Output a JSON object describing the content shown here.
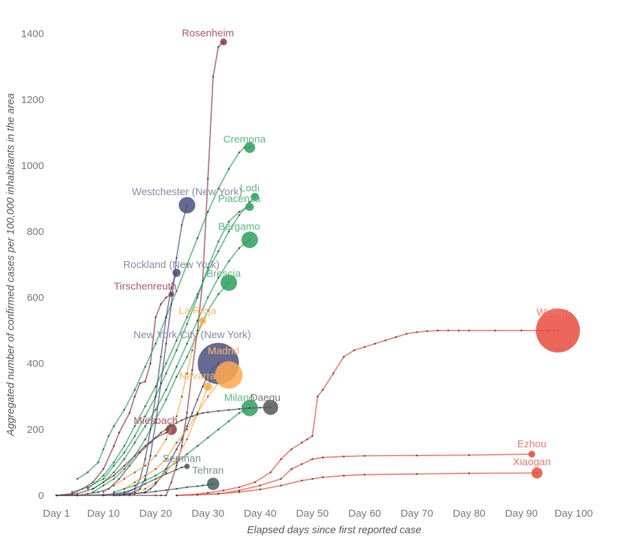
{
  "chart_data": {
    "type": "line",
    "title": "",
    "xlabel": "Elapsed days since first reported case",
    "ylabel": "Aggregated number of confirmed cases per 100,000 inhabitants in the area",
    "xlim": [
      1,
      100
    ],
    "ylim": [
      0,
      1400
    ],
    "x_ticks": [
      1,
      10,
      20,
      30,
      40,
      50,
      60,
      70,
      80,
      90,
      100
    ],
    "x_tick_labels": [
      "Day 1",
      "Day 10",
      "Day 20",
      "Day 30",
      "Day 40",
      "Day 50",
      "Day 60",
      "Day 70",
      "Day 80",
      "Day 90",
      "Day 100"
    ],
    "y_ticks": [
      0,
      200,
      400,
      600,
      800,
      1000,
      1200,
      1400
    ],
    "y_tick_labels": [
      "0",
      "200",
      "400",
      "600",
      "800",
      "1000",
      "1200",
      "1400"
    ],
    "grid": false,
    "series": [
      {
        "name": "Rosenheim",
        "color": "#8c3b4a",
        "end_size": 5,
        "x": [
          1,
          5,
          10,
          15,
          20,
          21,
          22,
          23,
          24,
          25,
          26,
          27,
          28,
          29,
          30,
          31,
          32,
          33
        ],
        "y": [
          0,
          0,
          0,
          0,
          0,
          0,
          0,
          40,
          90,
          150,
          250,
          380,
          500,
          650,
          960,
          1270,
          1360,
          1375
        ]
      },
      {
        "name": "Tirschenreuth",
        "color": "#8c3b4a",
        "end_size": 4,
        "x": [
          1,
          4,
          6,
          8,
          10,
          12,
          13,
          15,
          16,
          17,
          18,
          19,
          20,
          21,
          22,
          23
        ],
        "y": [
          0,
          5,
          20,
          40,
          80,
          150,
          190,
          250,
          300,
          340,
          345,
          400,
          540,
          580,
          600,
          610
        ]
      },
      {
        "name": "Miesbach",
        "color": "#8c3b4a",
        "end_size": 8,
        "x": [
          1,
          5,
          8,
          10,
          12,
          14,
          16,
          18,
          20,
          22,
          23
        ],
        "y": [
          0,
          5,
          20,
          40,
          60,
          90,
          120,
          150,
          175,
          190,
          200
        ]
      },
      {
        "name": "Cremona",
        "color": "#2f9e5e",
        "end_size": 8,
        "x": [
          5,
          7,
          9,
          10,
          11,
          12,
          14,
          16,
          18,
          20,
          22,
          24,
          26,
          28,
          30,
          32,
          34,
          36,
          37,
          38
        ],
        "y": [
          50,
          70,
          100,
          140,
          180,
          210,
          260,
          320,
          390,
          460,
          540,
          620,
          700,
          780,
          860,
          930,
          990,
          1040,
          1055,
          1055
        ]
      },
      {
        "name": "Lodi",
        "color": "#2f9e5e",
        "end_size": 6,
        "x": [
          7,
          10,
          12,
          14,
          16,
          18,
          20,
          22,
          24,
          26,
          28,
          30,
          32,
          34,
          36,
          38,
          39
        ],
        "y": [
          20,
          60,
          100,
          150,
          210,
          270,
          330,
          400,
          470,
          540,
          610,
          680,
          740,
          800,
          850,
          890,
          905
        ]
      },
      {
        "name": "Piacenza",
        "color": "#2f9e5e",
        "end_size": 6,
        "x": [
          4,
          7,
          10,
          12,
          14,
          16,
          18,
          20,
          22,
          24,
          26,
          28,
          30,
          32,
          34,
          36,
          38
        ],
        "y": [
          10,
          25,
          50,
          90,
          130,
          180,
          240,
          300,
          370,
          440,
          520,
          600,
          690,
          770,
          830,
          860,
          875
        ]
      },
      {
        "name": "Bergamo",
        "color": "#2f9e5e",
        "end_size": 12,
        "x": [
          8,
          10,
          12,
          14,
          16,
          18,
          20,
          22,
          24,
          26,
          28,
          30,
          32,
          34,
          36,
          38
        ],
        "y": [
          20,
          40,
          70,
          110,
          160,
          210,
          260,
          320,
          390,
          460,
          530,
          600,
          660,
          710,
          750,
          775
        ]
      },
      {
        "name": "Brescia",
        "color": "#2f9e5e",
        "end_size": 12,
        "x": [
          8,
          10,
          12,
          14,
          16,
          18,
          20,
          22,
          24,
          26,
          28,
          30,
          32,
          34
        ],
        "y": [
          10,
          30,
          50,
          80,
          120,
          170,
          230,
          290,
          360,
          420,
          490,
          560,
          610,
          645
        ]
      },
      {
        "name": "Milano",
        "color": "#2f9e5e",
        "end_size": 12,
        "x": [
          12,
          14,
          16,
          18,
          20,
          22,
          24,
          26,
          28,
          30,
          32,
          34,
          36,
          38
        ],
        "y": [
          10,
          20,
          30,
          45,
          60,
          80,
          100,
          125,
          150,
          175,
          200,
          225,
          250,
          265
        ]
      },
      {
        "name": "Westchester (New York)",
        "color": "#4b4f7c",
        "end_size": 12,
        "x": [
          13,
          15,
          17,
          18,
          19,
          20,
          21,
          22,
          23,
          24,
          25,
          26
        ],
        "y": [
          0,
          5,
          20,
          50,
          120,
          220,
          340,
          460,
          580,
          720,
          820,
          880
        ]
      },
      {
        "name": "Rockland (New York)",
        "color": "#4b4f7c",
        "end_size": 6,
        "x": [
          12,
          14,
          16,
          17,
          18,
          19,
          20,
          21,
          22,
          23,
          24
        ],
        "y": [
          0,
          5,
          20,
          50,
          110,
          200,
          300,
          420,
          540,
          630,
          675
        ]
      },
      {
        "name": "New York City (New York)",
        "color": "#4b4f7c",
        "end_size": 30,
        "x": [
          12,
          14,
          16,
          18,
          19,
          20,
          21,
          22,
          23,
          24,
          25,
          26,
          27,
          28,
          29,
          30,
          31,
          32
        ],
        "y": [
          0,
          2,
          5,
          10,
          20,
          35,
          55,
          80,
          110,
          140,
          170,
          210,
          250,
          290,
          330,
          365,
          385,
          400
        ]
      },
      {
        "name": "La Rioja",
        "color": "#ffa94d",
        "end_size": 5,
        "x": [
          10,
          12,
          14,
          16,
          18,
          20,
          22,
          24,
          25,
          26,
          27,
          28,
          29
        ],
        "y": [
          10,
          30,
          50,
          70,
          90,
          120,
          170,
          240,
          300,
          370,
          440,
          500,
          530
        ]
      },
      {
        "name": "Madrid",
        "color": "#ffa94d",
        "end_size": 20,
        "x": [
          14,
          16,
          18,
          20,
          22,
          24,
          26,
          28,
          30,
          32,
          34
        ],
        "y": [
          20,
          40,
          60,
          80,
          110,
          160,
          200,
          250,
          300,
          340,
          365
        ]
      },
      {
        "name": "Navarra",
        "color": "#ffa94d",
        "end_size": 6,
        "x": [
          16,
          18,
          20,
          22,
          24,
          26,
          28,
          30
        ],
        "y": [
          10,
          20,
          40,
          70,
          110,
          170,
          250,
          330
        ]
      },
      {
        "name": "Daegu",
        "color": "#555555",
        "end_size": 11,
        "x": [
          1,
          3,
          5,
          7,
          9,
          11,
          13,
          15,
          17,
          19,
          20,
          21,
          22,
          23,
          24,
          25,
          26,
          27,
          28,
          29,
          30,
          32,
          34,
          36,
          38,
          40,
          42
        ],
        "y": [
          0,
          0,
          0,
          5,
          10,
          20,
          50,
          90,
          130,
          160,
          175,
          190,
          200,
          210,
          220,
          228,
          235,
          240,
          245,
          250,
          252,
          256,
          259,
          262,
          265,
          266,
          267
        ]
      },
      {
        "name": "Semnan",
        "color": "#465c5c",
        "end_size": 4,
        "x": [
          10,
          12,
          14,
          16,
          18,
          20,
          22,
          24,
          25,
          26
        ],
        "y": [
          0,
          5,
          10,
          20,
          35,
          50,
          65,
          78,
          85,
          88
        ]
      },
      {
        "name": "Tehran",
        "color": "#465c5c",
        "end_size": 9,
        "x": [
          1,
          5,
          10,
          15,
          18,
          20,
          22,
          24,
          26,
          28,
          29,
          30,
          31
        ],
        "y": [
          0,
          0,
          2,
          5,
          8,
          12,
          16,
          20,
          25,
          28,
          30,
          32,
          35
        ]
      },
      {
        "name": "Wuhan",
        "color": "#e74c3c",
        "end_size": 32,
        "x": [
          24,
          27,
          30,
          33,
          36,
          39,
          42,
          44,
          46,
          48,
          49,
          50,
          51,
          52,
          54,
          56,
          58,
          60,
          62,
          64,
          66,
          68,
          70,
          72,
          74,
          76,
          78,
          80,
          85,
          90,
          95,
          97
        ],
        "y": [
          0,
          2,
          8,
          15,
          25,
          40,
          70,
          110,
          140,
          160,
          170,
          180,
          300,
          320,
          370,
          420,
          440,
          450,
          460,
          470,
          480,
          490,
          495,
          498,
          500,
          500,
          500,
          500,
          500,
          500,
          500,
          500
        ]
      },
      {
        "name": "Ezhou",
        "color": "#e74c3c",
        "end_size": 5,
        "x": [
          24,
          28,
          32,
          36,
          40,
          44,
          46,
          48,
          50,
          52,
          56,
          60,
          70,
          80,
          92
        ],
        "y": [
          0,
          2,
          5,
          15,
          30,
          50,
          80,
          95,
          110,
          115,
          118,
          120,
          121,
          122,
          125
        ]
      },
      {
        "name": "Xiaogan",
        "color": "#e74c3c",
        "end_size": 8,
        "x": [
          24,
          28,
          32,
          36,
          40,
          44,
          48,
          50,
          52,
          56,
          60,
          70,
          80,
          93
        ],
        "y": [
          0,
          2,
          5,
          10,
          18,
          30,
          45,
          50,
          55,
          60,
          63,
          65,
          67,
          68
        ]
      }
    ],
    "labels": [
      {
        "text": "Rosenheim",
        "series": "Rosenheim",
        "x": 30,
        "y": 1392,
        "color": "#a85a6a"
      },
      {
        "text": "Tirschenreuth",
        "series": "Tirschenreuth",
        "x": 18,
        "y": 624,
        "color": "#a85a6a"
      },
      {
        "text": "Miesbach",
        "series": "Miesbach",
        "x": 20,
        "y": 217,
        "color": "#a85a6a"
      },
      {
        "text": "Cremona",
        "series": "Cremona",
        "x": 37,
        "y": 1070,
        "color": "#5cb57f"
      },
      {
        "text": "Lodi",
        "series": "Lodi",
        "x": 38,
        "y": 922,
        "color": "#5cb57f"
      },
      {
        "text": "Piacenza",
        "series": "Piacenza",
        "x": 36,
        "y": 890,
        "color": "#5cb57f"
      },
      {
        "text": "Bergamo",
        "series": "Bergamo",
        "x": 36,
        "y": 805,
        "color": "#5cb57f"
      },
      {
        "text": "Brescia",
        "series": "Brescia",
        "x": 33,
        "y": 662,
        "color": "#5cb57f"
      },
      {
        "text": "Milano",
        "series": "Milano",
        "x": 36,
        "y": 286,
        "color": "#5cb57f"
      },
      {
        "text": "Westchester (New York)",
        "series": "Westchester (New York)",
        "x": 26,
        "y": 910,
        "color": "#8888a8"
      },
      {
        "text": "Rockland (New York)",
        "series": "Rockland (New York)",
        "x": 23,
        "y": 690,
        "color": "#8888a8"
      },
      {
        "text": "New York City (New York)",
        "series": "New York City (New York)",
        "x": 27,
        "y": 477,
        "color": "#8888a8"
      },
      {
        "text": "La Rioja",
        "series": "La Rioja",
        "x": 28,
        "y": 550,
        "color": "#ffb86b"
      },
      {
        "text": "Madrid",
        "series": "Madrid",
        "x": 33,
        "y": 428,
        "color": "#ffb86b"
      },
      {
        "text": "Navarra",
        "series": "Navarra",
        "x": 28,
        "y": 352,
        "color": "#ffb86b"
      },
      {
        "text": "Daegu",
        "series": "Daegu",
        "x": 41,
        "y": 286,
        "color": "#777777"
      },
      {
        "text": "Semnan",
        "series": "Semnan",
        "x": 25,
        "y": 102,
        "color": "#7c8c8c"
      },
      {
        "text": "Tehran",
        "series": "Tehran",
        "x": 30,
        "y": 66,
        "color": "#7c8c8c"
      },
      {
        "text": "Wuhan",
        "series": "Wuhan",
        "x": 96,
        "y": 546,
        "color": "#ea7a6c"
      },
      {
        "text": "Ezhou",
        "series": "Ezhou",
        "x": 92,
        "y": 146,
        "color": "#ea7a6c"
      },
      {
        "text": "Xiaogan",
        "series": "Xiaogan",
        "x": 92,
        "y": 92,
        "color": "#ea7a6c"
      }
    ]
  }
}
